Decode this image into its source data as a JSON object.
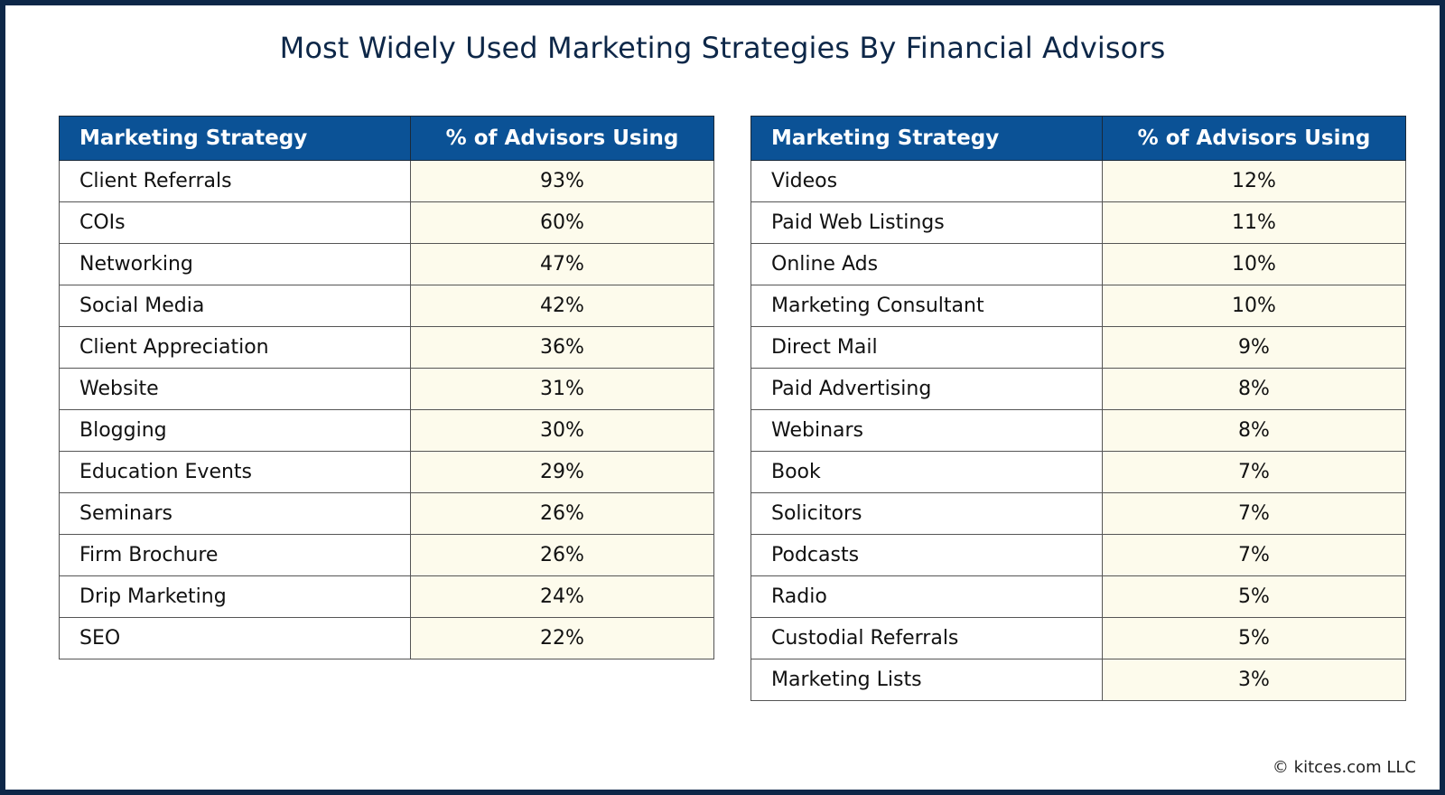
{
  "title": "Most Widely Used Marketing Strategies By Financial Advisors",
  "footer": "© kitces.com LLC",
  "colors": {
    "header_bg": "#0b5296",
    "value_cell_bg": "#fdfbec",
    "title": "#0d2748",
    "frame": "#0d2748"
  },
  "chart_data": {
    "type": "table",
    "columns": [
      "Marketing Strategy",
      "% of Advisors Using"
    ],
    "tables": [
      {
        "rows": [
          [
            "Client Referrals",
            "93%"
          ],
          [
            "COIs",
            "60%"
          ],
          [
            "Networking",
            "47%"
          ],
          [
            "Social Media",
            "42%"
          ],
          [
            "Client Appreciation",
            "36%"
          ],
          [
            "Website",
            "31%"
          ],
          [
            "Blogging",
            "30%"
          ],
          [
            "Education Events",
            "29%"
          ],
          [
            "Seminars",
            "26%"
          ],
          [
            "Firm Brochure",
            "26%"
          ],
          [
            "Drip Marketing",
            "24%"
          ],
          [
            "SEO",
            "22%"
          ]
        ]
      },
      {
        "rows": [
          [
            "Videos",
            "12%"
          ],
          [
            "Paid Web Listings",
            "11%"
          ],
          [
            "Online Ads",
            "10%"
          ],
          [
            "Marketing Consultant",
            "10%"
          ],
          [
            "Direct Mail",
            "9%"
          ],
          [
            "Paid Advertising",
            "8%"
          ],
          [
            "Webinars",
            "8%"
          ],
          [
            "Book",
            "7%"
          ],
          [
            "Solicitors",
            "7%"
          ],
          [
            "Podcasts",
            "7%"
          ],
          [
            "Radio",
            "5%"
          ],
          [
            "Custodial Referrals",
            "5%"
          ],
          [
            "Marketing Lists",
            "3%"
          ]
        ]
      }
    ]
  }
}
